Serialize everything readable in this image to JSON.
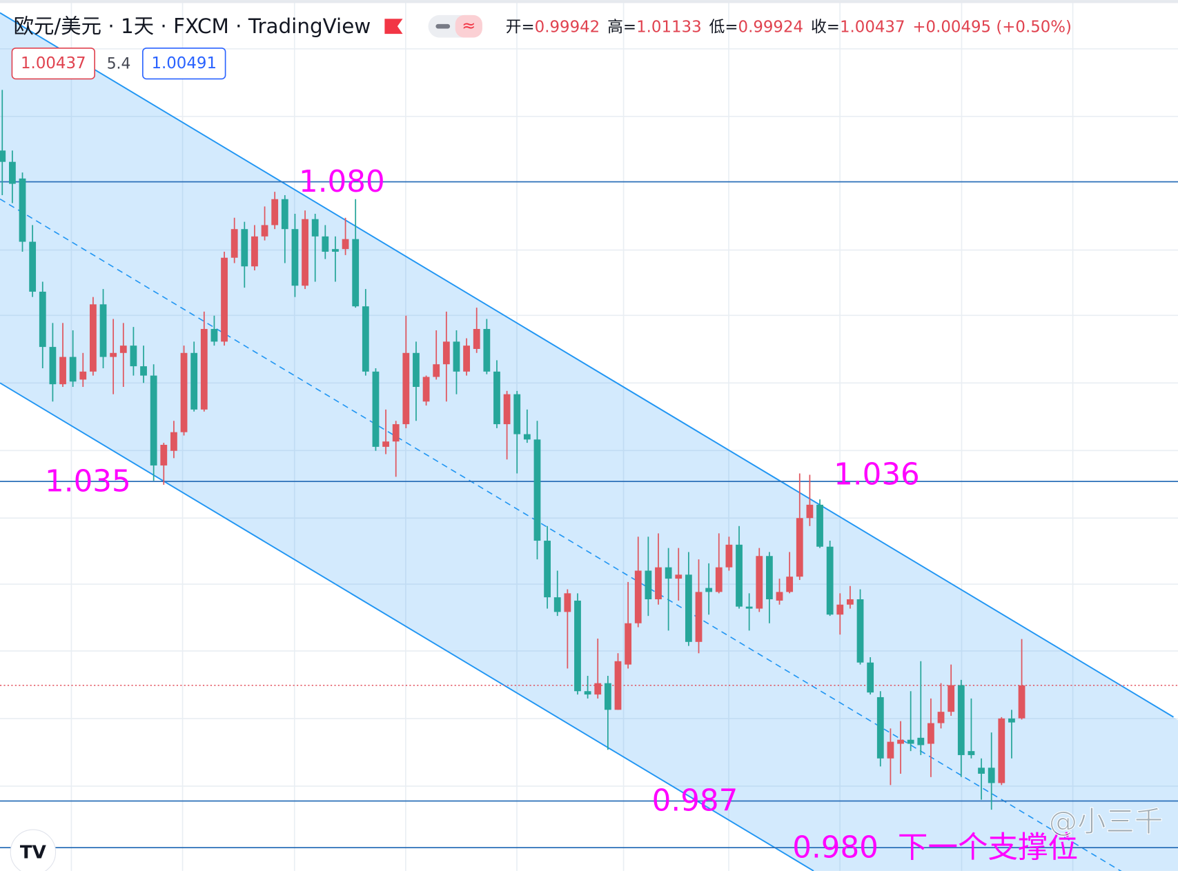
{
  "chart_data": {
    "type": "candlestick",
    "title": "欧元/美元 · 1天 · FXCM · TradingView",
    "ohlc_labels": [
      "开=",
      "高=",
      "低=",
      "收="
    ],
    "change": "+0.00495 (+0.50%)",
    "bid": 1.00437,
    "spread": 5.4,
    "ask": 1.00491,
    "up_color": "#e0565e",
    "down_color": "#26a69a",
    "ylim": [
      0.9765,
      1.1073
    ],
    "candles": [
      [
        1.0847,
        1.0938,
        1.078,
        1.083
      ],
      [
        1.083,
        1.0847,
        1.0768,
        1.0797
      ],
      [
        1.0805,
        1.0814,
        1.0695,
        1.071
      ],
      [
        1.071,
        1.0735,
        1.0627,
        1.0635
      ],
      [
        1.0635,
        1.065,
        1.052,
        1.0552
      ],
      [
        1.0552,
        1.0588,
        1.047,
        1.0496
      ],
      [
        1.0496,
        1.0588,
        1.0492,
        1.0537
      ],
      [
        1.0537,
        1.0577,
        1.0492,
        1.05
      ],
      [
        1.0503,
        1.0543,
        1.0492,
        1.0515
      ],
      [
        1.0515,
        1.0627,
        1.0509,
        1.0616
      ],
      [
        1.0616,
        1.0639,
        1.052,
        1.0537
      ],
      [
        1.0537,
        1.0594,
        1.0481,
        1.0543
      ],
      [
        1.0543,
        1.0588,
        1.0492,
        1.0554
      ],
      [
        1.0554,
        1.0582,
        1.0509,
        1.0523
      ],
      [
        1.0523,
        1.0554,
        1.0498,
        1.0509
      ],
      [
        1.0509,
        1.0526,
        1.0351,
        1.0374
      ],
      [
        1.0374,
        1.0408,
        1.0345,
        1.0405
      ],
      [
        1.0396,
        1.0441,
        1.0385,
        1.0424
      ],
      [
        1.0424,
        1.0554,
        1.0419,
        1.0543
      ],
      [
        1.0543,
        1.056,
        1.0455,
        1.0458
      ],
      [
        1.0458,
        1.0605,
        1.0455,
        1.0579
      ],
      [
        1.0579,
        1.0599,
        1.0554,
        1.056
      ],
      [
        1.056,
        1.0695,
        1.0554,
        1.0686
      ],
      [
        1.0686,
        1.0746,
        1.0678,
        1.0729
      ],
      [
        1.0729,
        1.074,
        1.0641,
        1.0673
      ],
      [
        1.0673,
        1.0735,
        1.0667,
        1.0718
      ],
      [
        1.0718,
        1.0763,
        1.0712,
        1.0735
      ],
      [
        1.0735,
        1.0785,
        1.0729,
        1.0774
      ],
      [
        1.0774,
        1.078,
        1.0678,
        1.0729
      ],
      [
        1.0729,
        1.0752,
        1.0627,
        1.0644
      ],
      [
        1.0644,
        1.0757,
        1.0639,
        1.0744
      ],
      [
        1.0744,
        1.0752,
        1.065,
        1.0718
      ],
      [
        1.0718,
        1.0735,
        1.0684,
        1.0695
      ],
      [
        1.0699,
        1.0718,
        1.065,
        1.0695
      ],
      [
        1.0699,
        1.0746,
        1.069,
        1.0714
      ],
      [
        1.0714,
        1.0774,
        1.0611,
        1.0613
      ],
      [
        1.0613,
        1.0639,
        1.0509,
        1.0515
      ],
      [
        1.0515,
        1.052,
        1.0396,
        1.0402
      ],
      [
        1.0402,
        1.0458,
        1.0391,
        1.041
      ],
      [
        1.041,
        1.0441,
        1.0357,
        1.0436
      ],
      [
        1.0436,
        1.0599,
        1.043,
        1.0543
      ],
      [
        1.0543,
        1.056,
        1.0441,
        1.0492
      ],
      [
        1.047,
        1.0509,
        1.0464,
        1.0507
      ],
      [
        1.0507,
        1.0577,
        1.0503,
        1.0526
      ],
      [
        1.0526,
        1.0605,
        1.047,
        1.056
      ],
      [
        1.056,
        1.0577,
        1.0481,
        1.0515
      ],
      [
        1.0515,
        1.0565,
        1.0509,
        1.0554
      ],
      [
        1.0549,
        1.0611,
        1.0543,
        1.0579
      ],
      [
        1.0579,
        1.0594,
        1.0511,
        1.0515
      ],
      [
        1.0515,
        1.0532,
        1.043,
        1.0436
      ],
      [
        1.0436,
        1.0486,
        1.0383,
        1.0481
      ],
      [
        1.0481,
        1.0486,
        1.0362,
        1.0421
      ],
      [
        1.0421,
        1.0458,
        1.0408,
        1.0413
      ],
      [
        1.0413,
        1.0441,
        1.0233,
        1.0261
      ],
      [
        1.0261,
        1.0283,
        1.0159,
        1.0176
      ],
      [
        1.0176,
        1.0216,
        1.0148,
        1.0154
      ],
      [
        1.0154,
        1.0188,
        1.0069,
        1.0182
      ],
      [
        1.0171,
        1.0182,
        1.003,
        1.0035
      ],
      [
        1.0035,
        1.0058,
        1.0024,
        1.003
      ],
      [
        1.003,
        1.0114,
        1.0024,
        1.0047
      ],
      [
        1.0047,
        1.0058,
        0.9947,
        1.0007
      ],
      [
        1.0007,
        1.0092,
        1.0007,
        1.008
      ],
      [
        1.0075,
        1.0199,
        1.0069,
        1.0137
      ],
      [
        1.0137,
        1.0267,
        1.0131,
        1.0216
      ],
      [
        1.0216,
        1.0267,
        1.0148,
        1.0173
      ],
      [
        1.0173,
        1.0272,
        1.0165,
        1.0221
      ],
      [
        1.0221,
        1.025,
        1.0126,
        1.0204
      ],
      [
        1.0204,
        1.025,
        1.0171,
        1.021
      ],
      [
        1.021,
        1.0244,
        1.0103,
        1.0109
      ],
      [
        1.0109,
        1.0233,
        1.0092,
        1.0184
      ],
      [
        1.019,
        1.0227,
        1.015,
        1.0184
      ],
      [
        1.0184,
        1.0272,
        1.0182,
        1.0221
      ],
      [
        1.0221,
        1.0267,
        1.0216,
        1.0255
      ],
      [
        1.0255,
        1.0283,
        1.0159,
        1.0162
      ],
      [
        1.0162,
        1.0182,
        1.0126,
        1.0159
      ],
      [
        1.0159,
        1.025,
        1.0154,
        1.0238
      ],
      [
        1.0238,
        1.0244,
        1.0137,
        1.0173
      ],
      [
        1.0171,
        1.0204,
        1.0165,
        1.0184
      ],
      [
        1.0184,
        1.0244,
        1.0182,
        1.0207
      ],
      [
        1.0207,
        1.0362,
        1.0202,
        1.0295
      ],
      [
        1.0295,
        1.036,
        1.0283,
        1.0315
      ],
      [
        1.0315,
        1.0323,
        1.025,
        1.0252
      ],
      [
        1.0252,
        1.0261,
        1.0148,
        1.015
      ],
      [
        1.015,
        1.0182,
        1.012,
        1.0165
      ],
      [
        1.0165,
        1.0193,
        1.0159,
        1.0173
      ],
      [
        1.0173,
        1.0188,
        1.0075,
        1.0078
      ],
      [
        1.0078,
        1.0086,
        1.003,
        1.0033
      ],
      [
        1.0026,
        1.0035,
        0.9922,
        0.9934
      ],
      [
        0.9934,
        0.9979,
        0.9894,
        0.9959
      ],
      [
        0.9956,
        0.999,
        0.9911,
        0.9962
      ],
      [
        0.9962,
        1.0035,
        0.9945,
        0.9956
      ],
      [
        0.9965,
        1.008,
        0.9939,
        0.9954
      ],
      [
        0.9956,
        1.0024,
        0.9906,
        0.9987
      ],
      [
        0.9987,
        1.0047,
        0.9979,
        1.0004
      ],
      [
        1.0004,
        1.0075,
        0.9998,
        1.0044
      ],
      [
        1.0044,
        1.0052,
        0.9906,
        0.9939
      ],
      [
        0.9945,
        1.0024,
        0.9934,
        0.9939
      ],
      [
        0.992,
        0.9934,
        0.9872,
        0.9911
      ],
      [
        0.992,
        0.9973,
        0.9857,
        0.9897
      ],
      [
        0.9897,
        0.9996,
        0.9894,
        0.9994
      ],
      [
        0.9994,
        1.0007,
        0.9934,
        0.9988
      ],
      [
        0.99942,
        1.01133,
        0.99924,
        1.00437
      ]
    ],
    "levels": [
      {
        "value": 1.08,
        "label": "1.080",
        "line": true
      },
      {
        "value": 1.035,
        "label": "1.035",
        "line": true
      },
      {
        "value": 1.036,
        "label": "1.036",
        "line": false
      },
      {
        "value": 0.987,
        "label": "0.987",
        "line": true
      },
      {
        "value": 0.98,
        "label": "0.980",
        "line": true
      }
    ],
    "annotation": "下一个支撑位"
  },
  "watermark": "@小三千"
}
